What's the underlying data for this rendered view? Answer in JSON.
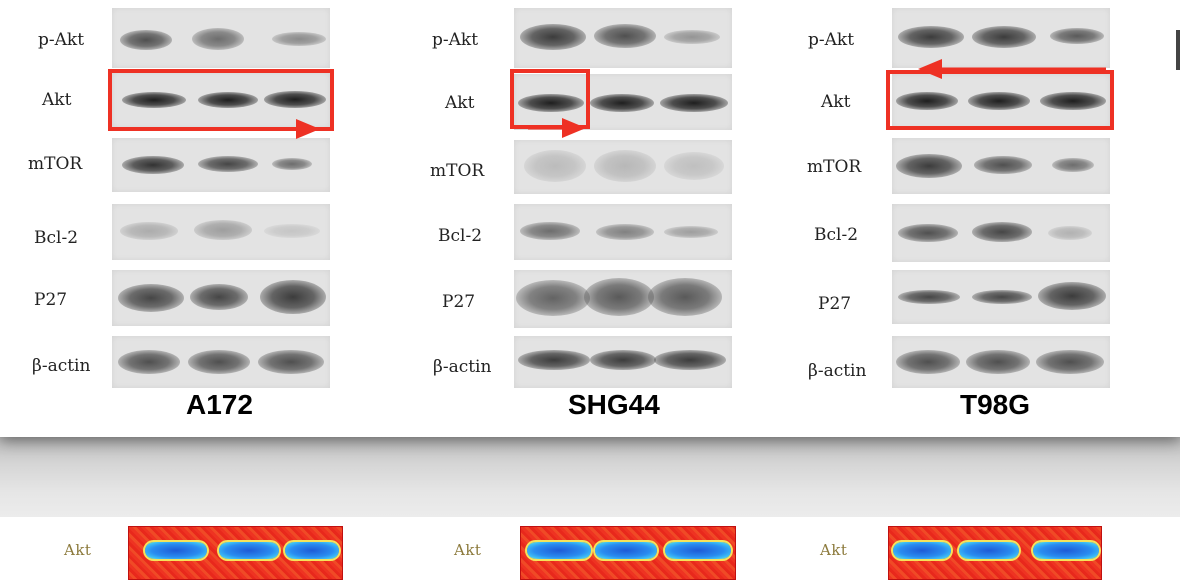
{
  "panels": [
    {
      "cell_line": "A172",
      "rows": [
        "p-Akt",
        "Akt",
        "mTOR",
        "Bcl-2",
        "P27",
        "β-actin"
      ]
    },
    {
      "cell_line": "SHG44",
      "rows": [
        "p-Akt",
        "Akt",
        "mTOR",
        "Bcl-2",
        "P27",
        "β-actin"
      ]
    },
    {
      "cell_line": "T98G",
      "rows": [
        "p-Akt",
        "Akt",
        "mTOR",
        "Bcl-2",
        "P27",
        "β-actin"
      ]
    }
  ],
  "heatmap_strips": [
    {
      "label": "Akt"
    },
    {
      "label": "Akt"
    },
    {
      "label": "Akt"
    }
  ],
  "colors": {
    "highlight": "#ee3124",
    "heatmap_background": "#ee3322",
    "heatmap_band": "#2a8df0"
  }
}
